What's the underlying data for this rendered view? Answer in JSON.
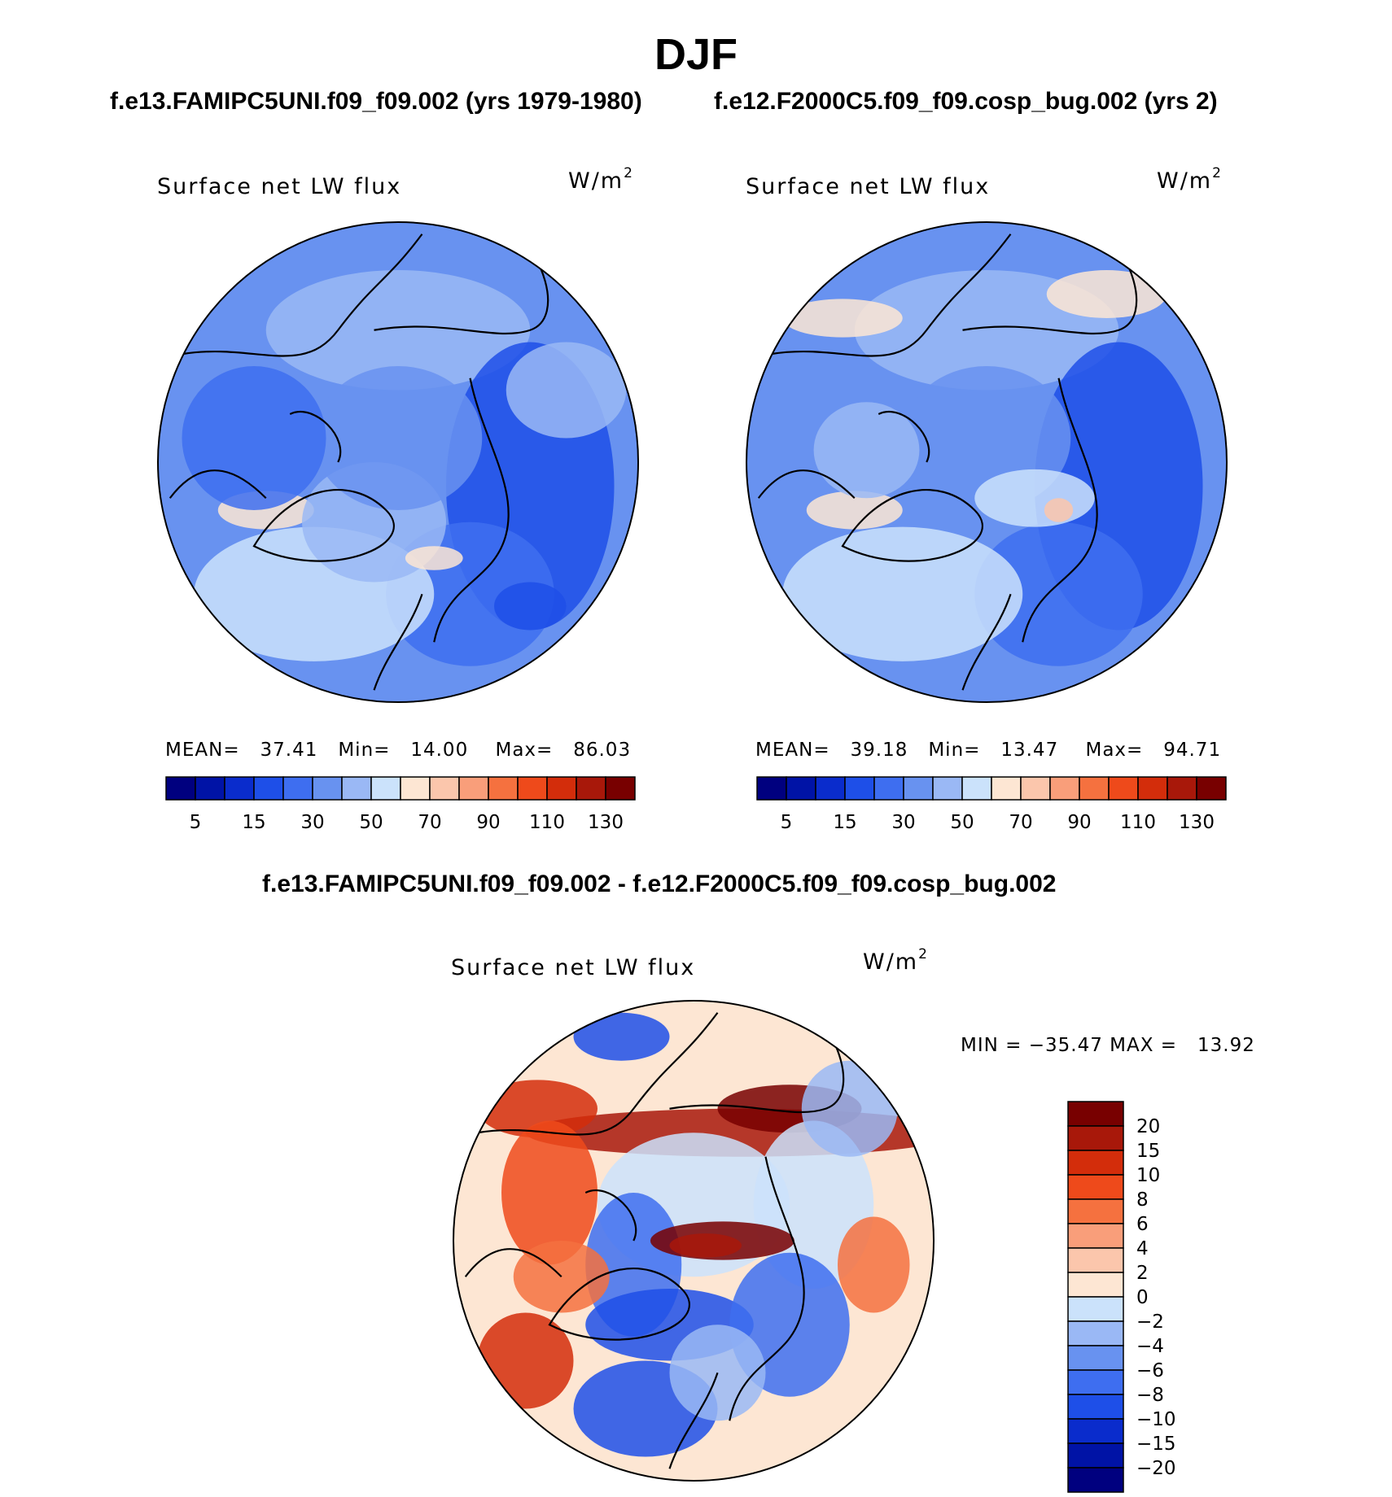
{
  "figure": {
    "title": "DJF",
    "top_subtitle_left": "f.e13.FAMIPC5UNI.f09_f09.002 (yrs 1979-1980)",
    "top_subtitle_right": "f.e12.F2000C5.f09_f09.cosp_bug.002 (yrs 2)",
    "diff_subtitle": "f.e13.FAMIPC5UNI.f09_f09.002 - f.e12.F2000C5.f09_f09.cosp_bug.002"
  },
  "chart_data": [
    {
      "type": "heatmap",
      "projection": "north-polar-stereographic",
      "title": "Surface net LW flux",
      "units_base": "W/m",
      "units_exp": "2",
      "stats": {
        "mean_label": "MEAN=",
        "mean": "37.41",
        "min_label": "Min=",
        "min": "14.00",
        "max_label": "Max=",
        "max": "86.03"
      },
      "colorbar": {
        "orientation": "horizontal",
        "levels": [
          "5",
          "15",
          "30",
          "50",
          "70",
          "90",
          "110",
          "130"
        ],
        "colors": [
          "#00007f",
          "#0013a6",
          "#0a2ccc",
          "#1e4fe8",
          "#3e6ef0",
          "#6892f0",
          "#9ab8f5",
          "#cbe2fb",
          "#fde6d3",
          "#fbc6ac",
          "#f99e7a",
          "#f5713f",
          "#ee4a1b",
          "#d32d0b",
          "#a8180a",
          "#780000"
        ]
      }
    },
    {
      "type": "heatmap",
      "projection": "north-polar-stereographic",
      "title": "Surface net LW flux",
      "units_base": "W/m",
      "units_exp": "2",
      "stats": {
        "mean_label": "MEAN=",
        "mean": "39.18",
        "min_label": "Min=",
        "min": "13.47",
        "max_label": "Max=",
        "max": "94.71"
      },
      "colorbar": {
        "orientation": "horizontal",
        "levels": [
          "5",
          "15",
          "30",
          "50",
          "70",
          "90",
          "110",
          "130"
        ],
        "colors": [
          "#00007f",
          "#0013a6",
          "#0a2ccc",
          "#1e4fe8",
          "#3e6ef0",
          "#6892f0",
          "#9ab8f5",
          "#cbe2fb",
          "#fde6d3",
          "#fbc6ac",
          "#f99e7a",
          "#f5713f",
          "#ee4a1b",
          "#d32d0b",
          "#a8180a",
          "#780000"
        ]
      }
    },
    {
      "type": "heatmap",
      "projection": "north-polar-stereographic",
      "title": "Surface net LW flux",
      "units_base": "W/m",
      "units_exp": "2",
      "stats_text": "MIN = −35.47 MAX =   13.92",
      "colorbar": {
        "orientation": "vertical",
        "levels": [
          "20",
          "15",
          "10",
          "8",
          "6",
          "4",
          "2",
          "0",
          "−2",
          "−4",
          "−6",
          "−8",
          "−10",
          "−15",
          "−20"
        ],
        "colors": [
          "#780000",
          "#a8180a",
          "#d32d0b",
          "#ee4a1b",
          "#f5713f",
          "#f99e7a",
          "#fbc6ac",
          "#fde6d3",
          "#cbe2fb",
          "#9ab8f5",
          "#6892f0",
          "#3e6ef0",
          "#1e4fe8",
          "#0a2ccc",
          "#0013a6",
          "#00007f"
        ]
      }
    }
  ]
}
